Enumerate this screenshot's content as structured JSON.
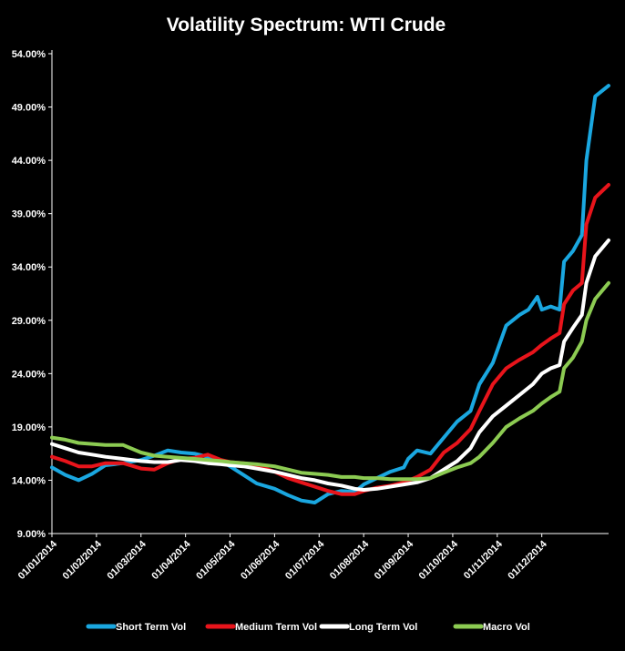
{
  "chart_data": {
    "type": "line",
    "title": "Volatility Spectrum: WTI Crude",
    "xlabel": "",
    "ylabel": "",
    "ylim": [
      9,
      54
    ],
    "xlim": [
      0,
      12
    ],
    "yticks": [
      "54.00%",
      "49.00%",
      "44.00%",
      "39.00%",
      "34.00%",
      "29.00%",
      "24.00%",
      "19.00%",
      "14.00%",
      "9.00%"
    ],
    "ytick_values": [
      54,
      49,
      44,
      39,
      34,
      29,
      24,
      19,
      14,
      9
    ],
    "xticks": [
      "01/01/2014",
      "01/02/2014",
      "01/03/2014",
      "01/04/2014",
      "01/05/2014",
      "01/06/2014",
      "01/07/2014",
      "01/08/2014",
      "01/09/2014",
      "01/10/2014",
      "01/11/2014",
      "01/12/2014"
    ],
    "x_note": "x values are months since 01/01/2014",
    "grid": false,
    "legend_position": "bottom",
    "series": [
      {
        "name": "Short Term Vol",
        "color": "#1aa7e0",
        "points": [
          [
            0,
            15.2
          ],
          [
            0.3,
            14.5
          ],
          [
            0.6,
            14.0
          ],
          [
            0.9,
            14.6
          ],
          [
            1.2,
            15.4
          ],
          [
            1.6,
            15.6
          ],
          [
            2.0,
            15.9
          ],
          [
            2.3,
            16.3
          ],
          [
            2.6,
            16.8
          ],
          [
            2.9,
            16.6
          ],
          [
            3.2,
            16.5
          ],
          [
            3.5,
            16.2
          ],
          [
            3.8,
            15.8
          ],
          [
            4.0,
            15.3
          ],
          [
            4.3,
            14.5
          ],
          [
            4.6,
            13.7
          ],
          [
            5.0,
            13.2
          ],
          [
            5.3,
            12.6
          ],
          [
            5.6,
            12.1
          ],
          [
            5.9,
            11.9
          ],
          [
            6.2,
            12.7
          ],
          [
            6.5,
            13.0
          ],
          [
            6.8,
            12.9
          ],
          [
            7.0,
            13.6
          ],
          [
            7.3,
            14.2
          ],
          [
            7.6,
            14.8
          ],
          [
            7.9,
            15.2
          ],
          [
            8.0,
            16.0
          ],
          [
            8.2,
            16.8
          ],
          [
            8.5,
            16.5
          ],
          [
            8.8,
            18.0
          ],
          [
            9.1,
            19.5
          ],
          [
            9.4,
            20.5
          ],
          [
            9.6,
            23.0
          ],
          [
            9.9,
            25.0
          ],
          [
            10.2,
            28.5
          ],
          [
            10.5,
            29.5
          ],
          [
            10.7,
            30.0
          ],
          [
            10.9,
            31.2
          ],
          [
            11.0,
            30.0
          ],
          [
            11.2,
            30.3
          ],
          [
            11.4,
            30.0
          ],
          [
            11.5,
            34.5
          ],
          [
            11.7,
            35.5
          ],
          [
            11.9,
            37.0
          ],
          [
            12.0,
            44.0
          ],
          [
            12.2,
            50.0
          ],
          [
            12.5,
            51.0
          ]
        ]
      },
      {
        "name": "Medium Term Vol",
        "color": "#e8141b",
        "points": [
          [
            0,
            16.2
          ],
          [
            0.3,
            15.8
          ],
          [
            0.6,
            15.3
          ],
          [
            0.9,
            15.3
          ],
          [
            1.2,
            15.6
          ],
          [
            1.6,
            15.6
          ],
          [
            2.0,
            15.1
          ],
          [
            2.3,
            15.0
          ],
          [
            2.6,
            15.6
          ],
          [
            2.9,
            16.0
          ],
          [
            3.2,
            16.1
          ],
          [
            3.5,
            16.4
          ],
          [
            3.8,
            15.9
          ],
          [
            4.0,
            15.7
          ],
          [
            4.3,
            15.6
          ],
          [
            4.6,
            15.4
          ],
          [
            5.0,
            14.8
          ],
          [
            5.3,
            14.2
          ],
          [
            5.6,
            13.8
          ],
          [
            5.9,
            13.4
          ],
          [
            6.2,
            13.0
          ],
          [
            6.5,
            12.7
          ],
          [
            6.8,
            12.7
          ],
          [
            7.0,
            13.0
          ],
          [
            7.3,
            13.3
          ],
          [
            7.6,
            13.5
          ],
          [
            7.9,
            13.8
          ],
          [
            8.2,
            14.3
          ],
          [
            8.5,
            15.0
          ],
          [
            8.8,
            16.6
          ],
          [
            9.1,
            17.5
          ],
          [
            9.4,
            18.8
          ],
          [
            9.6,
            20.5
          ],
          [
            9.9,
            23.0
          ],
          [
            10.2,
            24.5
          ],
          [
            10.5,
            25.3
          ],
          [
            10.8,
            26.0
          ],
          [
            11.0,
            26.7
          ],
          [
            11.2,
            27.3
          ],
          [
            11.4,
            27.8
          ],
          [
            11.5,
            30.5
          ],
          [
            11.7,
            31.8
          ],
          [
            11.9,
            32.5
          ],
          [
            12.0,
            38.0
          ],
          [
            12.2,
            40.5
          ],
          [
            12.5,
            41.7
          ]
        ]
      },
      {
        "name": "Long Term Vol",
        "color": "#ffffff",
        "points": [
          [
            0,
            17.4
          ],
          [
            0.3,
            17.0
          ],
          [
            0.6,
            16.6
          ],
          [
            0.9,
            16.4
          ],
          [
            1.2,
            16.2
          ],
          [
            1.6,
            16.0
          ],
          [
            2.0,
            15.8
          ],
          [
            2.3,
            15.7
          ],
          [
            2.6,
            15.7
          ],
          [
            2.9,
            15.9
          ],
          [
            3.2,
            15.8
          ],
          [
            3.5,
            15.6
          ],
          [
            3.8,
            15.5
          ],
          [
            4.0,
            15.4
          ],
          [
            4.3,
            15.3
          ],
          [
            4.6,
            15.1
          ],
          [
            5.0,
            14.8
          ],
          [
            5.3,
            14.5
          ],
          [
            5.6,
            14.2
          ],
          [
            5.9,
            14.0
          ],
          [
            6.2,
            13.7
          ],
          [
            6.5,
            13.5
          ],
          [
            6.8,
            13.2
          ],
          [
            7.0,
            13.1
          ],
          [
            7.3,
            13.2
          ],
          [
            7.6,
            13.4
          ],
          [
            7.9,
            13.6
          ],
          [
            8.2,
            13.8
          ],
          [
            8.5,
            14.2
          ],
          [
            8.8,
            15.0
          ],
          [
            9.1,
            15.8
          ],
          [
            9.4,
            17.0
          ],
          [
            9.6,
            18.5
          ],
          [
            9.9,
            20.0
          ],
          [
            10.2,
            21.0
          ],
          [
            10.5,
            22.0
          ],
          [
            10.8,
            23.0
          ],
          [
            11.0,
            24.0
          ],
          [
            11.2,
            24.5
          ],
          [
            11.4,
            24.8
          ],
          [
            11.5,
            27.0
          ],
          [
            11.7,
            28.3
          ],
          [
            11.9,
            29.5
          ],
          [
            12.0,
            32.5
          ],
          [
            12.2,
            35.0
          ],
          [
            12.5,
            36.5
          ]
        ]
      },
      {
        "name": "Macro Vol",
        "color": "#8ccb52",
        "points": [
          [
            0,
            18.0
          ],
          [
            0.3,
            17.8
          ],
          [
            0.6,
            17.5
          ],
          [
            0.9,
            17.4
          ],
          [
            1.2,
            17.3
          ],
          [
            1.6,
            17.3
          ],
          [
            2.0,
            16.6
          ],
          [
            2.3,
            16.3
          ],
          [
            2.6,
            16.2
          ],
          [
            2.9,
            16.1
          ],
          [
            3.2,
            16.0
          ],
          [
            3.5,
            15.9
          ],
          [
            3.8,
            15.8
          ],
          [
            4.0,
            15.7
          ],
          [
            4.3,
            15.6
          ],
          [
            4.6,
            15.5
          ],
          [
            5.0,
            15.3
          ],
          [
            5.3,
            15.0
          ],
          [
            5.6,
            14.7
          ],
          [
            5.9,
            14.6
          ],
          [
            6.2,
            14.5
          ],
          [
            6.5,
            14.3
          ],
          [
            6.8,
            14.3
          ],
          [
            7.0,
            14.2
          ],
          [
            7.3,
            14.2
          ],
          [
            7.6,
            14.1
          ],
          [
            7.9,
            14.1
          ],
          [
            8.2,
            14.1
          ],
          [
            8.5,
            14.2
          ],
          [
            8.8,
            14.7
          ],
          [
            9.1,
            15.2
          ],
          [
            9.4,
            15.6
          ],
          [
            9.6,
            16.2
          ],
          [
            9.9,
            17.5
          ],
          [
            10.2,
            19.0
          ],
          [
            10.5,
            19.8
          ],
          [
            10.8,
            20.5
          ],
          [
            11.0,
            21.2
          ],
          [
            11.2,
            21.8
          ],
          [
            11.4,
            22.3
          ],
          [
            11.5,
            24.5
          ],
          [
            11.7,
            25.5
          ],
          [
            11.9,
            27.0
          ],
          [
            12.0,
            29.0
          ],
          [
            12.2,
            31.0
          ],
          [
            12.5,
            32.5
          ]
        ]
      }
    ]
  }
}
